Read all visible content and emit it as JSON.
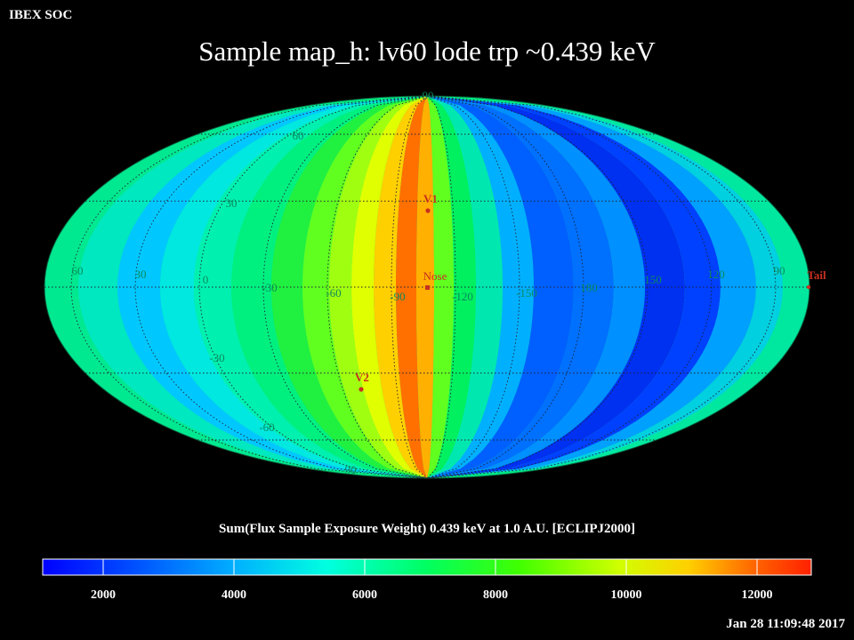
{
  "header": {
    "corner_label": "IBEX SOC",
    "title": "Sample map_h: lv60 lode trp ~0.439 keV"
  },
  "map": {
    "projection": "mollweide",
    "latitude_labels": [
      "90",
      "60",
      "30",
      "-30",
      "-60",
      "-90"
    ],
    "longitude_labels": [
      "60",
      "30",
      "0",
      "-30",
      "-60",
      "-90",
      "-120",
      "-150",
      "180",
      "150",
      "120",
      "90"
    ],
    "markers": [
      {
        "name": "V1",
        "color": "#c83020"
      },
      {
        "name": "Nose",
        "color": "#c83020"
      },
      {
        "name": "V2",
        "color": "#c83020"
      },
      {
        "name": "Tail",
        "color": "#c83020"
      }
    ],
    "label_color": "#0a8a5a"
  },
  "colorbar": {
    "title": "Sum(Flux Sample Exposure Weight)  0.439 keV at 1.0 A.U. [ECLIPJ2000]",
    "tick_labels": [
      "2000",
      "4000",
      "6000",
      "8000",
      "10000",
      "12000"
    ],
    "range": [
      1000,
      12800
    ],
    "colors": [
      "#0000ff",
      "#0090ff",
      "#00ffff",
      "#00ff40",
      "#ffff00",
      "#ff2000"
    ]
  },
  "footer": {
    "timestamp": "Jan 28 11:09:48 2017"
  }
}
